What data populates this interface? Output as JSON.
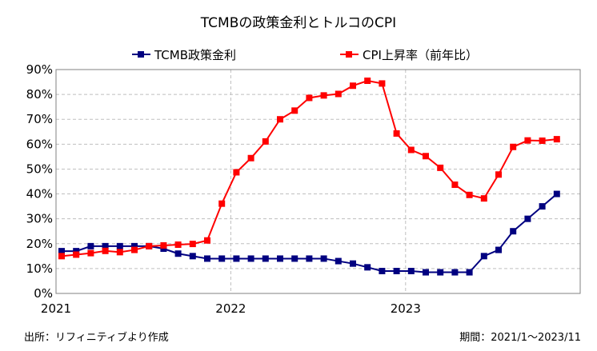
{
  "chart_data": {
    "type": "line",
    "title": "TCMBの政策金利とトルコのCPI",
    "source_note": "出所：リフィニティブより作成",
    "period_note": "期間：2021/1～2023/11",
    "x_tick_labels": [
      "2021",
      "2022",
      "2023"
    ],
    "y_tick_labels": [
      "0%",
      "10%",
      "20%",
      "30%",
      "40%",
      "50%",
      "60%",
      "70%",
      "80%",
      "90%"
    ],
    "ylim": [
      0,
      90
    ],
    "y_unit": "%",
    "grid": true,
    "legend_position": "top",
    "x": [
      "2021-01",
      "2021-02",
      "2021-03",
      "2021-04",
      "2021-05",
      "2021-06",
      "2021-07",
      "2021-08",
      "2021-09",
      "2021-10",
      "2021-11",
      "2021-12",
      "2022-01",
      "2022-02",
      "2022-03",
      "2022-04",
      "2022-05",
      "2022-06",
      "2022-07",
      "2022-08",
      "2022-09",
      "2022-10",
      "2022-11",
      "2022-12",
      "2023-01",
      "2023-02",
      "2023-03",
      "2023-04",
      "2023-05",
      "2023-06",
      "2023-07",
      "2023-08",
      "2023-09",
      "2023-10",
      "2023-11"
    ],
    "series": [
      {
        "name": "TCMB政策金利",
        "color": "#000080",
        "marker": "square",
        "values": [
          17,
          17,
          19,
          19,
          19,
          19,
          19,
          18,
          16,
          15,
          14,
          14,
          14,
          14,
          14,
          14,
          14,
          14,
          14,
          13,
          12,
          10.5,
          9,
          9,
          9,
          8.5,
          8.5,
          8.5,
          8.5,
          15,
          17.5,
          25,
          30,
          35,
          40
        ]
      },
      {
        "name": "CPI上昇率（前年比）",
        "color": "#ff0000",
        "marker": "square",
        "values": [
          15,
          15.6,
          16.2,
          17.1,
          16.6,
          17.5,
          19,
          19.3,
          19.6,
          19.9,
          21.3,
          36.1,
          48.7,
          54.4,
          61.1,
          70,
          73.5,
          78.6,
          79.6,
          80.2,
          83.5,
          85.5,
          84.4,
          64.3,
          57.7,
          55.2,
          50.5,
          43.7,
          39.6,
          38.2,
          47.8,
          58.9,
          61.5,
          61.4,
          62
        ]
      }
    ]
  }
}
